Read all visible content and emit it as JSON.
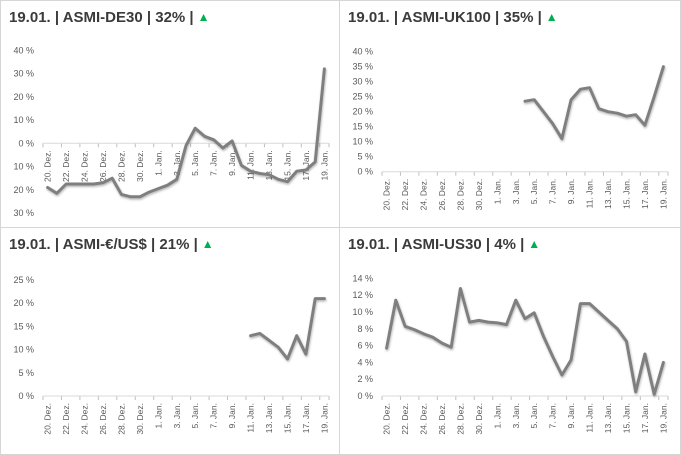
{
  "colors": {
    "trend_up": "#00B050",
    "line": "#7F7F7F",
    "axis": "#D9D9D9",
    "tick": "#BFBFBF",
    "label": "#595959",
    "negative_label": "#FF0000",
    "title": "#3B3B3B"
  },
  "chart_data": [
    {
      "id": "asmi-de30",
      "type": "line",
      "title_text": "19.01. | ASMI-DE30 | 32% |",
      "trend_glyph": "▲",
      "trend_direction": "up",
      "n_slots": 31,
      "x_label_every": 2,
      "x_labels": [
        "20. Dez.",
        "22. Dez.",
        "24. Dez.",
        "26. Dez.",
        "28. Dez.",
        "30. Dez.",
        "1. Jan.",
        "3. Jan.",
        "5. Jan.",
        "7. Jan.",
        "9. Jan.",
        "11. Jan.",
        "13. Jan.",
        "15. Jan.",
        "17. Jan.",
        "19. Jan."
      ],
      "ylim": [
        -30,
        40
      ],
      "y_ticks": [
        {
          "v": 40,
          "label": "40 %"
        },
        {
          "v": 30,
          "label": "30 %"
        },
        {
          "v": 20,
          "label": "20 %"
        },
        {
          "v": 10,
          "label": "10 %"
        },
        {
          "v": 0,
          "label": "0 %"
        },
        {
          "v": -10,
          "label": "10 %",
          "red": true
        },
        {
          "v": -20,
          "label": "20 %",
          "red": true
        },
        {
          "v": -30,
          "label": "30 %",
          "red": true
        }
      ],
      "series": [
        {
          "name": "ASMI-DE30",
          "values": [
            -19,
            -21.5,
            -17.5,
            -17.5,
            -17.5,
            -17.5,
            -17,
            -15,
            -22,
            -23,
            -23,
            -21,
            -19.5,
            -18,
            -15.5,
            -1,
            6.5,
            3,
            1.5,
            -2,
            1,
            -9.5,
            -12,
            -13,
            -13.5,
            -15.5,
            -16.5,
            -12,
            -11.5,
            -8,
            32
          ]
        }
      ],
      "line_color": "#7F7F7F",
      "grid": "zero-axis-only"
    },
    {
      "id": "asmi-uk100",
      "type": "line",
      "title_text": "19.01. | ASMI-UK100 | 35% |",
      "trend_glyph": "▲",
      "trend_direction": "up",
      "n_slots": 31,
      "x_label_every": 2,
      "x_labels": [
        "20. Dez.",
        "22. Dez.",
        "24. Dez.",
        "26. Dez.",
        "28. Dez.",
        "30. Dez.",
        "1. Jan.",
        "3. Jan.",
        "5. Jan.",
        "7. Jan.",
        "9. Jan.",
        "11. Jan.",
        "13. Jan.",
        "15. Jan.",
        "17. Jan.",
        "19. Jan."
      ],
      "ylim": [
        0,
        40
      ],
      "y_ticks": [
        {
          "v": 40,
          "label": "40 %"
        },
        {
          "v": 35,
          "label": "35 %"
        },
        {
          "v": 30,
          "label": "30 %"
        },
        {
          "v": 25,
          "label": "25 %"
        },
        {
          "v": 20,
          "label": "20 %"
        },
        {
          "v": 15,
          "label": "15 %"
        },
        {
          "v": 10,
          "label": "10 %"
        },
        {
          "v": 5,
          "label": "5 %"
        },
        {
          "v": 0,
          "label": "0 %"
        }
      ],
      "series": [
        {
          "name": "ASMI-UK100",
          "values": [
            null,
            null,
            null,
            null,
            null,
            null,
            null,
            null,
            null,
            null,
            null,
            null,
            null,
            null,
            null,
            23.5,
            24,
            20,
            16,
            11,
            24,
            27.5,
            28,
            21,
            20,
            19.5,
            18.5,
            19,
            15.5,
            25,
            35
          ]
        }
      ],
      "line_color": "#7F7F7F",
      "grid": "zero-axis-only"
    },
    {
      "id": "asmi-eur-usd",
      "type": "line",
      "title_text": "19.01. | ASMI-€/US$ | 21% |",
      "trend_glyph": "▲",
      "trend_direction": "up",
      "n_slots": 31,
      "x_label_every": 2,
      "x_labels": [
        "20. Dez.",
        "22. Dez.",
        "24. Dez.",
        "26. Dez.",
        "28. Dez.",
        "30. Dez.",
        "1. Jan.",
        "3. Jan.",
        "5. Jan.",
        "7. Jan.",
        "9. Jan.",
        "11. Jan.",
        "13. Jan.",
        "15. Jan.",
        "17. Jan.",
        "19. Jan."
      ],
      "ylim": [
        0,
        25
      ],
      "y_ticks": [
        {
          "v": 25,
          "label": "25 %"
        },
        {
          "v": 20,
          "label": "20 %"
        },
        {
          "v": 15,
          "label": "15 %"
        },
        {
          "v": 10,
          "label": "10 %"
        },
        {
          "v": 5,
          "label": "5 %"
        },
        {
          "v": 0,
          "label": "0 %"
        }
      ],
      "series": [
        {
          "name": "ASMI-€/US$",
          "values": [
            null,
            null,
            null,
            null,
            null,
            null,
            null,
            null,
            null,
            null,
            null,
            null,
            null,
            null,
            null,
            null,
            null,
            null,
            null,
            null,
            null,
            null,
            13,
            13.5,
            12,
            10.5,
            8,
            13,
            9,
            21,
            21
          ]
        }
      ],
      "line_color": "#7F7F7F",
      "grid": "zero-axis-only"
    },
    {
      "id": "asmi-us30",
      "type": "line",
      "title_text": "19.01. | ASMI-US30 | 4% |",
      "trend_glyph": "▲",
      "trend_direction": "up",
      "n_slots": 31,
      "x_label_every": 2,
      "x_labels": [
        "20. Dez.",
        "22. Dez.",
        "24. Dez.",
        "26. Dez.",
        "28. Dez.",
        "30. Dez.",
        "1. Jan.",
        "3. Jan.",
        "5. Jan.",
        "7. Jan.",
        "9. Jan.",
        "11. Jan.",
        "13. Jan.",
        "15. Jan.",
        "17. Jan.",
        "19. Jan."
      ],
      "ylim": [
        0,
        14
      ],
      "y_ticks": [
        {
          "v": 14,
          "label": "14 %"
        },
        {
          "v": 12,
          "label": "12 %"
        },
        {
          "v": 10,
          "label": "10 %"
        },
        {
          "v": 8,
          "label": "8 %"
        },
        {
          "v": 6,
          "label": "6 %"
        },
        {
          "v": 4,
          "label": "4 %"
        },
        {
          "v": 2,
          "label": "2 %"
        },
        {
          "v": 0,
          "label": "0 %"
        }
      ],
      "series": [
        {
          "name": "ASMI-US30",
          "values": [
            5.7,
            11.4,
            8.3,
            7.9,
            7.4,
            7,
            6.3,
            5.8,
            12.8,
            8.8,
            9,
            8.8,
            8.7,
            8.5,
            11.4,
            9.2,
            9.9,
            7.1,
            4.7,
            2.5,
            4.3,
            11,
            11,
            10,
            9,
            8,
            6.5,
            0.5,
            5,
            0.2,
            4
          ]
        }
      ],
      "line_color": "#7F7F7F",
      "grid": "zero-axis-only"
    }
  ]
}
